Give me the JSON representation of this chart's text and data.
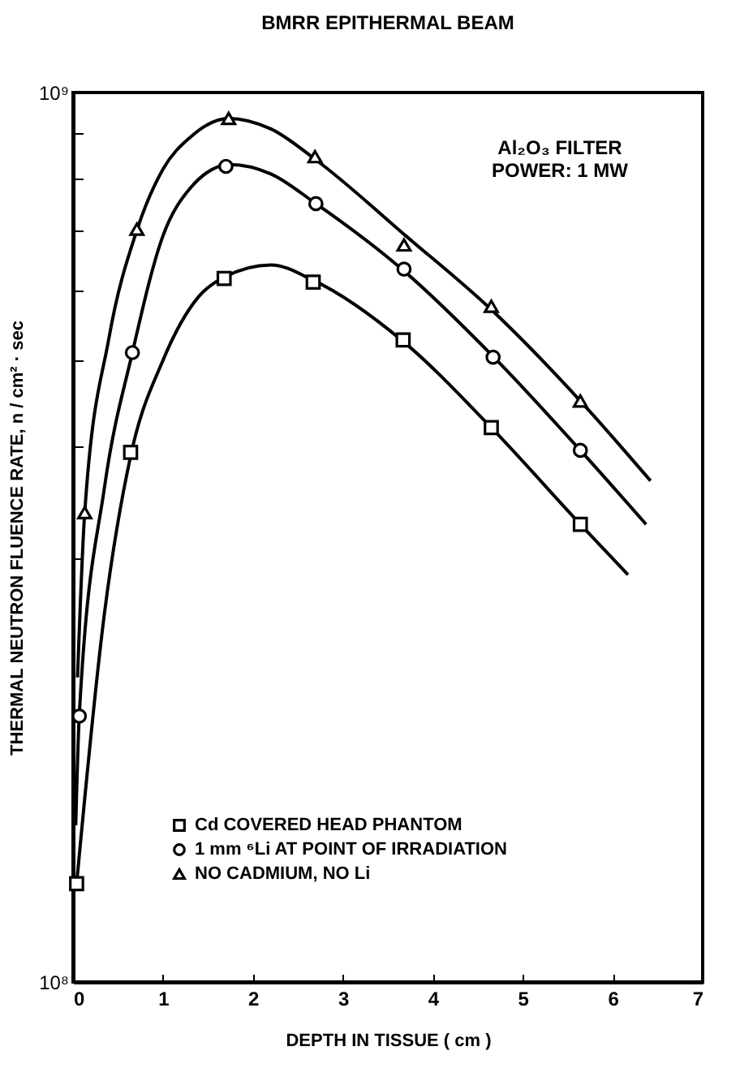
{
  "chart_data": {
    "type": "scatter",
    "title": "BMRR EPITHERMAL BEAM",
    "xlabel": "DEPTH IN TISSUE ( cm )",
    "ylabel": "THERMAL NEUTRON FLUENCE RATE, n / cm² · sec",
    "annotations": [
      "Al₂O₃ FILTER",
      "POWER: 1 MW"
    ],
    "xlim": [
      0,
      7
    ],
    "xticks": [
      0,
      1,
      2,
      3,
      4,
      5,
      6,
      7
    ],
    "ylim": [
      100000000,
      1000000000
    ],
    "log": true,
    "yticks": [
      {
        "value": 100000000,
        "label": "10⁸"
      },
      {
        "value": 200000000,
        "label": null
      },
      {
        "value": 300000000,
        "label": null
      },
      {
        "value": 400000000,
        "label": null
      },
      {
        "value": 500000000,
        "label": null
      },
      {
        "value": 600000000,
        "label": null
      },
      {
        "value": 700000000,
        "label": null
      },
      {
        "value": 800000000,
        "label": null
      },
      {
        "value": 900000000,
        "label": null
      },
      {
        "value": 1000000000,
        "label": "10⁹"
      }
    ],
    "grid": false,
    "legend": "bottom left",
    "series": [
      {
        "name": "Cd COVERED HEAD PHANTOM",
        "marker": "square",
        "color": "#000000",
        "x": [
          0.04,
          0.64,
          1.68,
          2.67,
          3.67,
          4.65,
          5.64
        ],
        "values": [
          129000000,
          394000000,
          618000000,
          612000000,
          527000000,
          420000000,
          327000000
        ]
      },
      {
        "name": "1 mm ⁶Li AT POINT OF IRRADIATION",
        "marker": "circle",
        "color": "#000000",
        "x": [
          0.07,
          0.66,
          1.7,
          2.7,
          3.68,
          4.67,
          5.64
        ],
        "values": [
          199000000,
          510000000,
          826000000,
          750000000,
          633000000,
          504000000,
          396000000
        ]
      },
      {
        "name": "NO CADMIUM, NO Li",
        "marker": "triangle",
        "color": "#000000",
        "x": [
          0.13,
          0.71,
          1.73,
          2.69,
          3.68,
          4.65,
          5.64
        ],
        "values": [
          337000000,
          702000000,
          935000000,
          847000000,
          674000000,
          575000000,
          450000000
        ]
      },
      {
        "type": "line",
        "color": "#000000",
        "x": [
          0.04,
          0.35,
          0.64,
          1.0,
          1.4,
          1.68,
          2.2,
          2.67,
          3.67,
          4.65,
          5.64,
          6.17
        ],
        "values": [
          129000000,
          260000000,
          390000000,
          500000000,
          590000000,
          620000000,
          640000000,
          615000000,
          525000000,
          420000000,
          327000000,
          287000000
        ]
      },
      {
        "type": "line",
        "color": "#000000",
        "x": [
          0.03,
          0.07,
          0.35,
          0.66,
          1.0,
          1.3,
          1.75,
          2.2,
          2.7,
          3.68,
          4.67,
          5.64,
          6.37
        ],
        "values": [
          150000000,
          200000000,
          360000000,
          510000000,
          690000000,
          780000000,
          830000000,
          810000000,
          750000000,
          630000000,
          505000000,
          396000000,
          327000000
        ]
      },
      {
        "type": "line",
        "color": "#000000",
        "x": [
          0.05,
          0.13,
          0.4,
          0.71,
          1.0,
          1.3,
          1.73,
          2.2,
          2.7,
          3.7,
          4.65,
          5.64,
          6.42
        ],
        "values": [
          220000000,
          337000000,
          530000000,
          700000000,
          820000000,
          890000000,
          935000000,
          910000000,
          840000000,
          690000000,
          570000000,
          450000000,
          366000000
        ]
      }
    ]
  }
}
